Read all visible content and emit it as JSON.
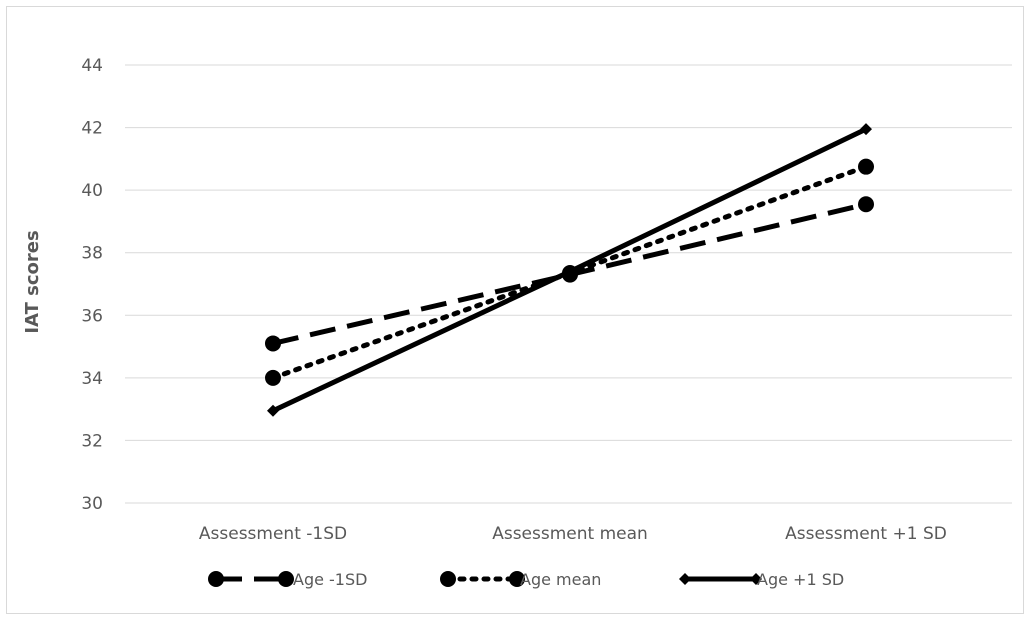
{
  "chart_data": {
    "type": "line",
    "title": "",
    "xlabel": "",
    "ylabel": "IAT scores",
    "categories": [
      "Assessment -1SD",
      "Assessment mean",
      "Assessment +1 SD"
    ],
    "ylim": [
      30,
      44
    ],
    "yticks": [
      30,
      32,
      34,
      36,
      38,
      40,
      42,
      44
    ],
    "grid": true,
    "legend_position": "bottom",
    "series": [
      {
        "name": "Age -1SD",
        "values": [
          35.1,
          37.3,
          39.55
        ],
        "line_style": "dashed",
        "marker": "circle",
        "color": "#000000"
      },
      {
        "name": "Age mean",
        "values": [
          34.0,
          37.35,
          40.75
        ],
        "line_style": "dotted",
        "marker": "circle",
        "color": "#000000"
      },
      {
        "name": "Age +1 SD",
        "values": [
          32.95,
          37.4,
          41.95
        ],
        "line_style": "solid",
        "marker": "diamond",
        "color": "#000000"
      }
    ]
  }
}
